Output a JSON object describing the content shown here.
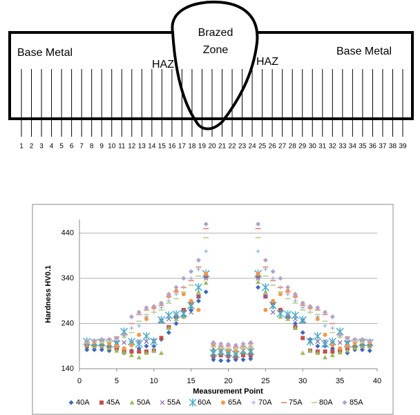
{
  "diagram": {
    "labels": [
      "Base Metal",
      "HAZ",
      "Brazed",
      "Zone",
      "HAZ",
      "Base Metal"
    ],
    "point_numbers": [
      1,
      2,
      3,
      4,
      5,
      6,
      7,
      8,
      9,
      10,
      11,
      12,
      13,
      14,
      15,
      16,
      17,
      18,
      19,
      20,
      21,
      22,
      23,
      24,
      25,
      26,
      27,
      28,
      29,
      30,
      31,
      32,
      33,
      34,
      35,
      36,
      37,
      38,
      39
    ]
  },
  "chart_data": {
    "type": "scatter",
    "x_label": "Measurement Point",
    "y_label": "Hardness HV0.1",
    "xlim": [
      0,
      40
    ],
    "xticks": [
      0,
      5,
      10,
      15,
      20,
      25,
      30,
      35,
      40
    ],
    "ylim": [
      140,
      470
    ],
    "yticks": [
      140,
      240,
      340,
      440
    ],
    "grid": true,
    "legend": "bottom",
    "x": [
      1,
      2,
      3,
      4,
      5,
      6,
      7,
      8,
      9,
      10,
      11,
      12,
      13,
      14,
      15,
      16,
      17,
      18,
      19,
      20,
      21,
      22,
      23,
      24,
      25,
      26,
      27,
      28,
      29,
      30,
      31,
      32,
      33,
      34,
      35,
      36,
      37,
      38,
      39
    ],
    "series": [
      {
        "name": "40A",
        "color": "#3c68c0",
        "marker": "diamond",
        "values": [
          182,
          182,
          182,
          180,
          185,
          175,
          180,
          185,
          190,
          190,
          205,
          220,
          240,
          255,
          270,
          290,
          310,
          160,
          158,
          158,
          160,
          160,
          162,
          320,
          300,
          285,
          270,
          255,
          240,
          220,
          205,
          190,
          190,
          185,
          180,
          175,
          182,
          182,
          180
        ]
      },
      {
        "name": "45A",
        "color": "#c0504d",
        "marker": "square",
        "values": [
          190,
          190,
          190,
          188,
          185,
          180,
          178,
          178,
          178,
          180,
          208,
          232,
          255,
          270,
          285,
          300,
          345,
          168,
          170,
          168,
          166,
          170,
          170,
          345,
          300,
          285,
          270,
          255,
          232,
          208,
          180,
          178,
          178,
          178,
          180,
          185,
          188,
          190,
          190
        ]
      },
      {
        "name": "50A",
        "color": "#9bbb59",
        "marker": "triangle",
        "values": [
          192,
          190,
          190,
          186,
          180,
          176,
          170,
          165,
          175,
          180,
          175,
          230,
          250,
          255,
          278,
          310,
          330,
          180,
          176,
          178,
          175,
          178,
          180,
          332,
          310,
          278,
          255,
          250,
          230,
          175,
          180,
          175,
          165,
          170,
          176,
          180,
          186,
          190,
          190
        ]
      },
      {
        "name": "55A",
        "color": "#8064a2",
        "marker": "x",
        "values": [
          195,
          196,
          196,
          195,
          198,
          198,
          196,
          200,
          200,
          202,
          245,
          250,
          255,
          262,
          265,
          300,
          340,
          185,
          182,
          180,
          182,
          180,
          185,
          340,
          300,
          265,
          262,
          255,
          250,
          245,
          202,
          200,
          200,
          196,
          198,
          198,
          195,
          196,
          196
        ]
      },
      {
        "name": "60A",
        "color": "#4bacc6",
        "marker": "star",
        "values": [
          200,
          198,
          198,
          195,
          195,
          222,
          200,
          195,
          212,
          200,
          248,
          258,
          260,
          262,
          280,
          320,
          350,
          175,
          178,
          175,
          172,
          180,
          178,
          350,
          320,
          280,
          262,
          260,
          258,
          248,
          200,
          212,
          195,
          200,
          222,
          195,
          195,
          198,
          198
        ]
      },
      {
        "name": "65A",
        "color": "#f79646",
        "marker": "circle",
        "values": [
          197,
          198,
          200,
          196,
          190,
          185,
          192,
          215,
          250,
          275,
          285,
          300,
          312,
          305,
          290,
          270,
          350,
          190,
          186,
          182,
          180,
          185,
          188,
          350,
          270,
          290,
          305,
          312,
          300,
          285,
          275,
          250,
          215,
          192,
          185,
          190,
          196,
          200,
          198
        ]
      },
      {
        "name": "70A",
        "color": "#7ea3d8",
        "marker": "plus",
        "values": [
          198,
          200,
          202,
          205,
          205,
          210,
          230,
          235,
          255,
          265,
          275,
          290,
          305,
          320,
          340,
          360,
          400,
          192,
          188,
          185,
          185,
          188,
          190,
          400,
          360,
          340,
          320,
          305,
          290,
          275,
          265,
          255,
          235,
          230,
          210,
          205,
          205,
          202,
          200
        ]
      },
      {
        "name": "75A",
        "color": "#e6958f",
        "marker": "dash",
        "values": [
          200,
          202,
          205,
          205,
          210,
          215,
          240,
          260,
          270,
          275,
          280,
          300,
          310,
          320,
          335,
          365,
          450,
          195,
          190,
          190,
          188,
          190,
          195,
          450,
          365,
          335,
          320,
          310,
          300,
          280,
          275,
          270,
          260,
          240,
          215,
          210,
          205,
          205,
          202
        ]
      },
      {
        "name": "80A",
        "color": "#c4d79b",
        "marker": "dash",
        "values": [
          198,
          200,
          198,
          200,
          205,
          210,
          220,
          245,
          260,
          265,
          270,
          285,
          295,
          310,
          325,
          345,
          430,
          188,
          186,
          185,
          184,
          186,
          188,
          430,
          345,
          325,
          310,
          295,
          285,
          270,
          265,
          260,
          245,
          220,
          210,
          205,
          200,
          198,
          200
        ]
      },
      {
        "name": "85A",
        "color": "#b3a2c7",
        "marker": "diamond",
        "values": [
          200,
          202,
          205,
          205,
          208,
          215,
          255,
          265,
          275,
          278,
          285,
          305,
          320,
          340,
          355,
          380,
          460,
          198,
          195,
          194,
          192,
          195,
          198,
          460,
          380,
          355,
          340,
          320,
          305,
          285,
          278,
          275,
          265,
          255,
          215,
          208,
          205,
          205,
          202
        ]
      }
    ]
  }
}
